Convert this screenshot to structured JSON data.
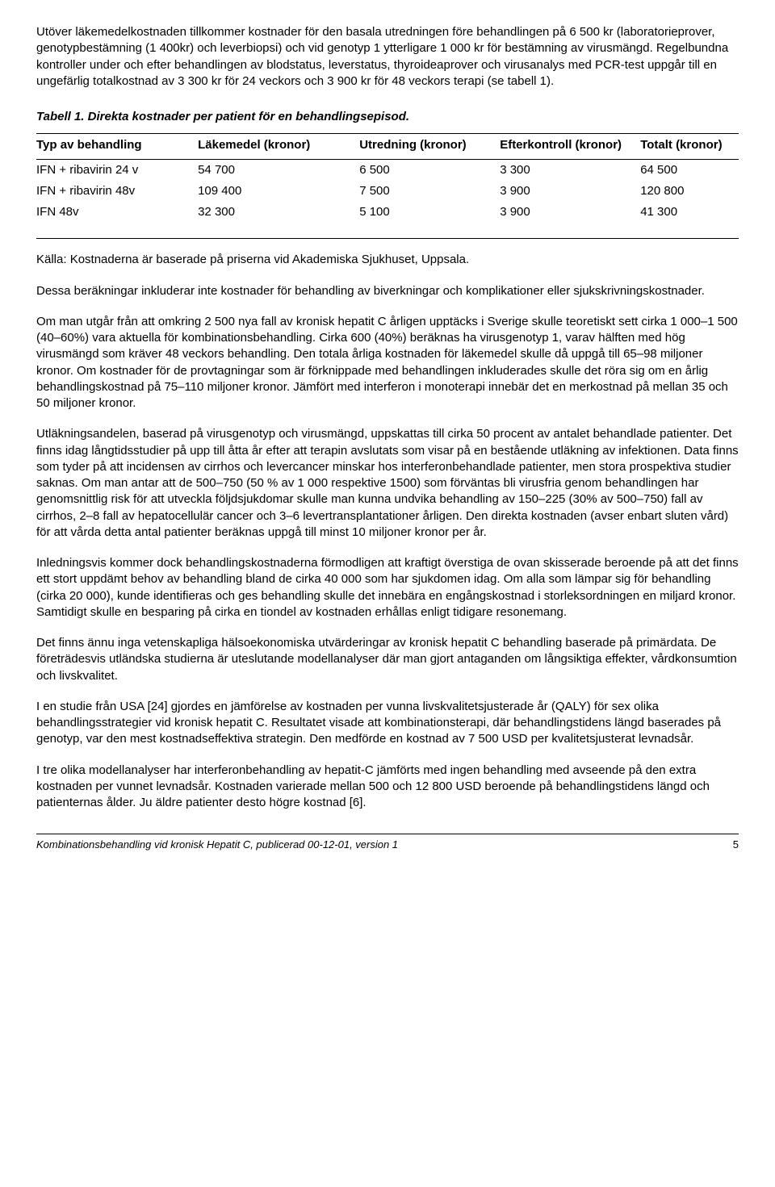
{
  "paragraphs": {
    "p1": "Utöver läkemedelkostnaden tillkommer kostnader för den basala utredningen före behandlingen på 6 500 kr (laboratorieprover, genotypbestämning (1 400kr) och leverbiopsi) och vid genotyp 1 ytterligare 1 000 kr för bestämning av virusmängd. Regelbundna kontroller under och efter behandlingen av blodstatus, leverstatus, thyroideaprover och virusanalys med PCR-test uppgår till en ungefärlig totalkostnad av 3 300 kr för 24 veckors och 3 900 kr för 48 veckors terapi (se tabell 1).",
    "tableTitle": "Tabell 1. Direkta kostnader per patient för en behandlingsepisod.",
    "source": "Källa: Kostnaderna är baserade på priserna vid Akademiska Sjukhuset, Uppsala.",
    "p2": "Dessa beräkningar inkluderar inte kostnader för behandling av biverkningar och komplikationer eller sjukskrivningskostnader.",
    "p3": "Om man utgår från att omkring 2 500 nya fall av kronisk hepatit C årligen upptäcks i Sverige skulle teoretiskt sett cirka 1 000–1 500 (40–60%) vara aktuella för kombinationsbehandling. Cirka 600 (40%) beräknas ha virusgenotyp 1, varav hälften med hög virusmängd som kräver 48 veckors behandling. Den totala årliga kostnaden för läkemedel skulle då uppgå till 65–98 miljoner kronor. Om kostnader för de provtagningar som är förknippade med behandlingen inkluderades skulle det röra sig om en årlig behandlingskostnad på 75–110 miljoner kronor. Jämfört med interferon i monoterapi innebär det en merkostnad på mellan 35 och 50 miljoner kronor.",
    "p4": "Utläkningsandelen, baserad på virusgenotyp och virusmängd, uppskattas till cirka 50 procent av antalet behandlade patienter. Det finns idag långtidsstudier på upp till åtta år efter att terapin avslutats som visar på en bestående utläkning av infektionen. Data finns som tyder på att incidensen av cirrhos och levercancer minskar hos interferonbehandlade patienter, men stora prospektiva studier saknas. Om man antar att de 500–750 (50 % av 1 000 respektive 1500) som förväntas bli virusfria genom behandlingen har genomsnittlig risk för att utveckla följdsjukdomar skulle man kunna undvika behandling av 150–225 (30% av 500–750) fall av cirrhos, 2–8 fall av hepatocellulär cancer och 3–6 levertransplantationer årligen. Den direkta kostnaden (avser enbart sluten vård) för att vårda detta antal patienter beräknas uppgå till minst 10 miljoner kronor per år.",
    "p5": "Inledningsvis kommer dock behandlingskostnaderna förmodligen att kraftigt överstiga de ovan skisserade beroende på att det finns ett stort uppdämt behov av behandling bland de cirka 40 000 som har sjukdomen idag. Om alla som lämpar sig för behandling (cirka 20 000), kunde identifieras och ges behandling skulle det innebära en engångskostnad i storleksordningen en miljard kronor. Samtidigt skulle en besparing på cirka en tiondel av kostnaden erhållas enligt tidigare resonemang.",
    "p6": "Det finns ännu inga vetenskapliga hälsoekonomiska utvärderingar av kronisk hepatit C behandling baserade på primärdata. De företrädesvis utländska studierna är uteslutande modellanalyser där man gjort antaganden om långsiktiga effekter, vårdkonsumtion och livskvalitet.",
    "p7": "I en studie från USA [24] gjordes en jämförelse av kostnaden per vunna livskvalitetsjusterade år (QALY) för sex olika behandlingsstrategier vid kronisk hepatit C. Resultatet visade att kombinationsterapi, där behandlingstidens längd baserades på genotyp, var den mest kostnadseffektiva strategin. Den medförde en kostnad av 7 500 USD per kvalitetsjusterat levnadsår.",
    "p8": "I tre olika modellanalyser har interferonbehandling av hepatit-C jämförts med ingen behandling med avseende på den extra kostnaden per vunnet levnadsår. Kostnaden varierade mellan 500 och 12 800 USD beroende på behandlingstidens längd och patienternas ålder. Ju äldre patienter desto högre kostnad [6]."
  },
  "table": {
    "headers": {
      "c1": "Typ av behandling",
      "c2": "Läkemedel (kronor)",
      "c3": "Utredning (kronor)",
      "c4": "Efterkontroll (kronor)",
      "c5": "Totalt (kronor)"
    },
    "rows": [
      {
        "name": "IFN + ribavirin 24 v",
        "med": "54 700",
        "utr": "6 500",
        "eft": "3 300",
        "tot": "64 500"
      },
      {
        "name": "IFN + ribavirin 48v",
        "med": "109 400",
        "utr": "7 500",
        "eft": "3 900",
        "tot": "120 800"
      },
      {
        "name": "IFN 48v",
        "med": "32 300",
        "utr": "5 100",
        "eft": "3 900",
        "tot": "41 300"
      }
    ]
  },
  "footer": {
    "title": "Kombinationsbehandling vid kronisk Hepatit C, publicerad 00-12-01, version 1",
    "page": "5"
  }
}
